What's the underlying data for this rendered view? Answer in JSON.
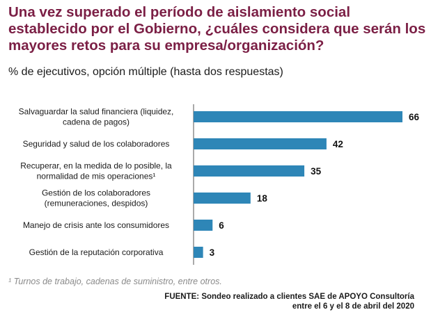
{
  "title": "Una vez superado el período de aislamiento social establecido por el Gobierno, ¿cuáles considera que serán los mayores retos para su empresa/organización?",
  "subtitle": "% de ejecutivos, opción múltiple (hasta dos respuestas)",
  "footnote": "¹ Turnos de trabajo, cadenas de suministro, entre otros.",
  "source": {
    "line1": "FUENTE: Sondeo realizado a clientes SAE de APOYO Consultoría",
    "line2": "entre el 6 y el 8 de abril del 2020"
  },
  "colors": {
    "title": "#7b1f45",
    "bar": "#2e86b7",
    "axis": "#555555"
  },
  "chart_data": {
    "type": "bar",
    "orientation": "horizontal",
    "categories": [
      [
        "Salvaguardar la salud financiera (liquidez,",
        "cadena de pagos)"
      ],
      [
        "Seguridad y salud de los colaboradores"
      ],
      [
        "Recuperar, en la medida de lo posible, la",
        "normalidad de mis operaciones¹"
      ],
      [
        "Gestión de los colaboradores",
        "(remuneraciones, despidos)"
      ],
      [
        "Manejo de crisis ante los consumidores"
      ],
      [
        "Gestión de la reputación corporativa"
      ]
    ],
    "values": [
      66,
      42,
      35,
      18,
      6,
      3
    ],
    "xlim": [
      0,
      66
    ],
    "grid": false,
    "data_labels": true
  }
}
